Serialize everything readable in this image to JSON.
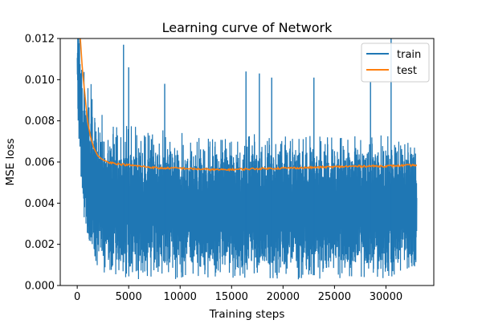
{
  "chart_data": {
    "type": "line",
    "title": "Learning curve of Network",
    "xlabel": "Training steps",
    "ylabel": "MSE loss",
    "xlim": [
      -1650,
      34650
    ],
    "ylim": [
      0,
      0.012
    ],
    "xticks": [
      0,
      5000,
      10000,
      15000,
      20000,
      25000,
      30000
    ],
    "xtick_labels": [
      "0",
      "5000",
      "10000",
      "15000",
      "20000",
      "25000",
      "30000"
    ],
    "yticks": [
      0,
      0.002,
      0.004,
      0.006,
      0.008,
      0.01,
      0.012
    ],
    "ytick_labels": [
      "0.000",
      "0.002",
      "0.004",
      "0.006",
      "0.008",
      "0.010",
      "0.012"
    ],
    "grid": false,
    "legend_position": "top-right",
    "series": [
      {
        "name": "train",
        "color": "#1f77b4",
        "style": "noisy band",
        "x_range": [
          0,
          33000
        ],
        "envelope_x": [
          0,
          300,
          600,
          1000,
          1500,
          2000,
          3000,
          5000,
          10000,
          15000,
          20000,
          25000,
          30000,
          33000
        ],
        "envelope_upper": [
          0.0125,
          0.0125,
          0.012,
          0.0105,
          0.0095,
          0.0088,
          0.0082,
          0.0078,
          0.0075,
          0.0074,
          0.0073,
          0.0073,
          0.0073,
          0.0068
        ],
        "envelope_lower": [
          0.009,
          0.006,
          0.0035,
          0.0025,
          0.0015,
          0.0008,
          0.0005,
          0.0003,
          0.0003,
          0.0003,
          0.0003,
          0.0003,
          0.0003,
          0.0008
        ],
        "dense_upper_x": [
          0,
          300,
          600,
          1000,
          1500,
          2000,
          3000,
          5000,
          10000,
          20000,
          30000,
          33000
        ],
        "dense_upper": [
          0.012,
          0.012,
          0.0095,
          0.0085,
          0.0075,
          0.007,
          0.0067,
          0.0065,
          0.0064,
          0.0064,
          0.0065,
          0.0066
        ],
        "dense_lower_x": [
          0,
          300,
          600,
          1000,
          1500,
          2000,
          3000,
          5000,
          10000,
          20000,
          30000,
          33000
        ],
        "dense_lower": [
          0.009,
          0.0055,
          0.0035,
          0.0025,
          0.0018,
          0.0014,
          0.0012,
          0.0011,
          0.0011,
          0.0011,
          0.0011,
          0.0012
        ],
        "spikes": [
          {
            "x": 4500,
            "y": 0.0117
          },
          {
            "x": 5000,
            "y": 0.0106
          },
          {
            "x": 8500,
            "y": 0.0098
          },
          {
            "x": 16400,
            "y": 0.0104
          },
          {
            "x": 17700,
            "y": 0.0103
          },
          {
            "x": 18900,
            "y": 0.0101
          },
          {
            "x": 23000,
            "y": 0.0101
          },
          {
            "x": 30500,
            "y": 0.012
          },
          {
            "x": 28500,
            "y": 0.0099
          }
        ]
      },
      {
        "name": "test",
        "color": "#ff7f0e",
        "x": [
          300,
          500,
          800,
          1000,
          1300,
          1600,
          2000,
          2500,
          3000,
          4000,
          5000,
          6000,
          7000,
          8000,
          10000,
          12000,
          14000,
          16000,
          18000,
          20000,
          22000,
          24000,
          26000,
          28000,
          30000,
          33000
        ],
        "values": [
          0.012,
          0.0105,
          0.009,
          0.008,
          0.0072,
          0.0067,
          0.0063,
          0.0061,
          0.006,
          0.0059,
          0.00585,
          0.0058,
          0.00575,
          0.0057,
          0.0057,
          0.00565,
          0.00562,
          0.00565,
          0.00568,
          0.0057,
          0.00572,
          0.00575,
          0.00578,
          0.0058,
          0.0058,
          0.00585
        ]
      }
    ]
  }
}
